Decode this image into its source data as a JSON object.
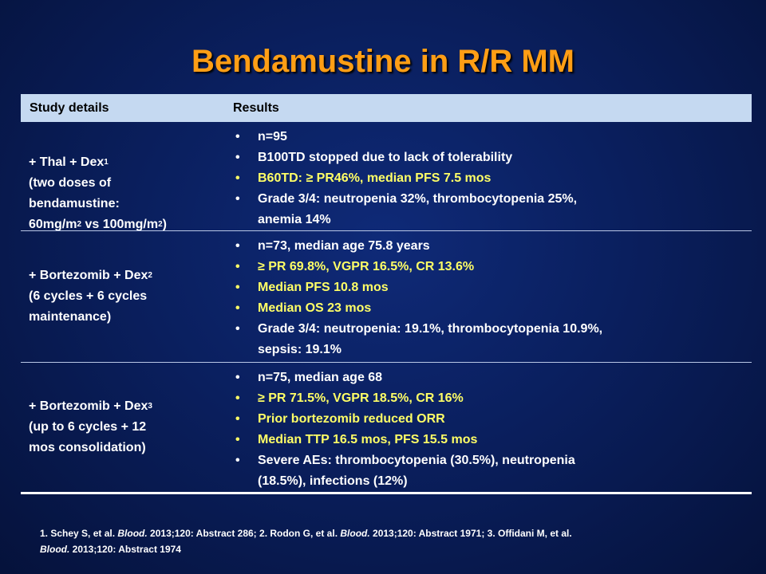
{
  "title": "Bendamustine in R/R MM",
  "table": {
    "headers": [
      "Study details",
      "Results"
    ],
    "rows": [
      {
        "study": {
          "line1": "+ Thal + Dex",
          "line1_sup": "1",
          "line2": "(two doses of",
          "line3": "bendamustine:",
          "line4_a": "60mg/m",
          "line4_sup1": "2",
          "line4_b": " vs 100mg/m",
          "line4_sup2": "2",
          "line4_c": ")"
        },
        "results": [
          {
            "text": "n=95",
            "highlight": false
          },
          {
            "text": "B100TD stopped due to lack of tolerability",
            "highlight": false
          },
          {
            "text": "B60TD: ≥ PR46%, median PFS 7.5 mos",
            "highlight": true
          },
          {
            "text": "Grade 3/4: neutropenia 32%, thrombocytopenia 25%,",
            "text2": "anemia 14%",
            "highlight": false
          }
        ]
      },
      {
        "study": {
          "line1": "+ Bortezomib + Dex",
          "line1_sup": "2",
          "line2": "(6 cycles + 6 cycles",
          "line3": "maintenance)"
        },
        "results": [
          {
            "text": "n=73, median age 75.8 years",
            "highlight": false
          },
          {
            "text": "≥ PR 69.8%, VGPR 16.5%, CR 13.6%",
            "highlight": true
          },
          {
            "text": "Median PFS 10.8 mos",
            "highlight": true
          },
          {
            "text": "Median OS 23 mos",
            "highlight": true
          },
          {
            "text": "Grade 3/4: neutropenia:  19.1%, thrombocytopenia 10.9%,",
            "text2": "sepsis: 19.1%",
            "highlight": false
          }
        ]
      },
      {
        "study": {
          "line1": "+ Bortezomib + Dex",
          "line1_sup": "3",
          "line2": "(up to 6 cycles + 12",
          "line3": "mos consolidation)"
        },
        "results": [
          {
            "text": "n=75, median age 68",
            "highlight": false
          },
          {
            "text": "≥ PR 71.5%, VGPR 18.5%, CR 16%",
            "highlight": true
          },
          {
            "text": "Prior bortezomib reduced ORR",
            "highlight": true
          },
          {
            "text": "Median TTP 16.5 mos, PFS 15.5 mos",
            "highlight": true
          },
          {
            "text": "Severe AEs: thrombocytopenia (30.5%), neutropenia",
            "text2": "(18.5%), infections (12%)",
            "highlight": false
          }
        ]
      }
    ]
  },
  "references": {
    "r1_a": "1. Schey S, et al. ",
    "r1_journal": "Blood.",
    "r1_b": " 2013;120: Abstract 286; 2. Rodon G, et al. ",
    "r2_journal": "Blood.",
    "r2_b": " 2013;120: Abstract 1971; 3. Offidani  M, et al.",
    "r3_journal": "Blood.",
    "r3_b": " 2013;120: Abstract 1974"
  },
  "colors": {
    "title": "#ff9e15",
    "header_bg": "#c5d9f1",
    "highlight_text": "#ffff66",
    "background": "#0a1f5e"
  }
}
